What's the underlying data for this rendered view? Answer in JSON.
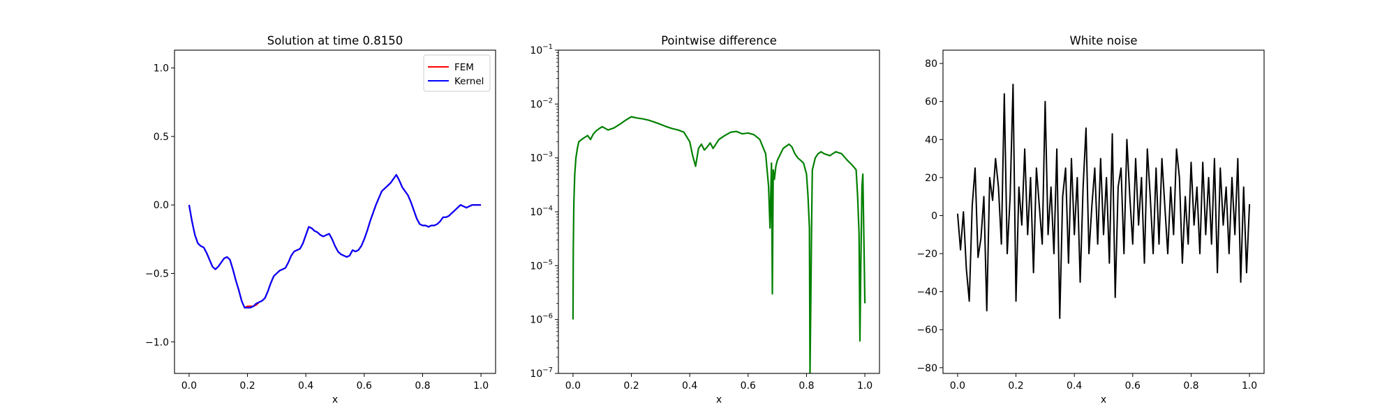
{
  "chart_data": [
    {
      "type": "line",
      "title": "Solution at time 0.8150",
      "xlabel": "x",
      "ylabel": "",
      "xlim": [
        -0.05,
        1.05
      ],
      "ylim": [
        -1.23,
        1.13
      ],
      "xticks": [
        0.0,
        0.2,
        0.4,
        0.6,
        0.8,
        1.0
      ],
      "xtick_labels": [
        "0.0",
        "0.2",
        "0.4",
        "0.6",
        "0.8",
        "1.0"
      ],
      "yticks": [
        -1.0,
        -0.5,
        0.0,
        0.5,
        1.0
      ],
      "ytick_labels": [
        "−1.0",
        "−0.5",
        "0.0",
        "0.5",
        "1.0"
      ],
      "legend": {
        "position": "top-right",
        "entries": [
          "FEM",
          "Kernel"
        ]
      },
      "series": [
        {
          "name": "FEM",
          "color": "#ff0000",
          "x": [
            0.0,
            0.01,
            0.02,
            0.03,
            0.04,
            0.05,
            0.06,
            0.07,
            0.08,
            0.09,
            0.1,
            0.11,
            0.12,
            0.13,
            0.14,
            0.15,
            0.16,
            0.17,
            0.18,
            0.19,
            0.2,
            0.21,
            0.22,
            0.23,
            0.24,
            0.25,
            0.26,
            0.27,
            0.28,
            0.29,
            0.3,
            0.31,
            0.32,
            0.33,
            0.34,
            0.35,
            0.36,
            0.37,
            0.38,
            0.39,
            0.4,
            0.41,
            0.42,
            0.43,
            0.44,
            0.45,
            0.46,
            0.47,
            0.48,
            0.49,
            0.5,
            0.51,
            0.52,
            0.53,
            0.54,
            0.55,
            0.56,
            0.57,
            0.58,
            0.59,
            0.6,
            0.61,
            0.62,
            0.63,
            0.64,
            0.65,
            0.66,
            0.67,
            0.68,
            0.69,
            0.7,
            0.71,
            0.72,
            0.73,
            0.74,
            0.75,
            0.76,
            0.77,
            0.78,
            0.79,
            0.8,
            0.81,
            0.82,
            0.83,
            0.84,
            0.85,
            0.86,
            0.87,
            0.88,
            0.89,
            0.9,
            0.91,
            0.92,
            0.93,
            0.94,
            0.95,
            0.96,
            0.97,
            0.98,
            0.99,
            1.0
          ],
          "y": [
            0.0,
            -0.12,
            -0.22,
            -0.28,
            -0.3,
            -0.31,
            -0.35,
            -0.4,
            -0.45,
            -0.47,
            -0.45,
            -0.42,
            -0.39,
            -0.38,
            -0.4,
            -0.47,
            -0.55,
            -0.62,
            -0.7,
            -0.75,
            -0.74,
            -0.74,
            -0.74,
            -0.73,
            -0.71,
            -0.7,
            -0.68,
            -0.63,
            -0.57,
            -0.52,
            -0.5,
            -0.48,
            -0.47,
            -0.46,
            -0.42,
            -0.37,
            -0.34,
            -0.33,
            -0.32,
            -0.28,
            -0.22,
            -0.16,
            -0.17,
            -0.19,
            -0.2,
            -0.22,
            -0.23,
            -0.22,
            -0.21,
            -0.25,
            -0.3,
            -0.34,
            -0.36,
            -0.37,
            -0.38,
            -0.37,
            -0.33,
            -0.34,
            -0.33,
            -0.3,
            -0.25,
            -0.19,
            -0.12,
            -0.06,
            0.0,
            0.05,
            0.1,
            0.12,
            0.14,
            0.16,
            0.19,
            0.22,
            0.18,
            0.13,
            0.1,
            0.07,
            0.02,
            -0.04,
            -0.1,
            -0.14,
            -0.15,
            -0.15,
            -0.16,
            -0.15,
            -0.15,
            -0.14,
            -0.12,
            -0.09,
            -0.09,
            -0.08,
            -0.06,
            -0.04,
            -0.02,
            0.0,
            -0.01,
            -0.02,
            -0.01,
            0.0,
            0.0,
            0.0,
            0.0
          ]
        },
        {
          "name": "Kernel",
          "color": "#0000ff",
          "x": [
            0.0,
            0.01,
            0.02,
            0.03,
            0.04,
            0.05,
            0.06,
            0.07,
            0.08,
            0.09,
            0.1,
            0.11,
            0.12,
            0.13,
            0.14,
            0.15,
            0.16,
            0.17,
            0.18,
            0.19,
            0.2,
            0.21,
            0.22,
            0.23,
            0.24,
            0.25,
            0.26,
            0.27,
            0.28,
            0.29,
            0.3,
            0.31,
            0.32,
            0.33,
            0.34,
            0.35,
            0.36,
            0.37,
            0.38,
            0.39,
            0.4,
            0.41,
            0.42,
            0.43,
            0.44,
            0.45,
            0.46,
            0.47,
            0.48,
            0.49,
            0.5,
            0.51,
            0.52,
            0.53,
            0.54,
            0.55,
            0.56,
            0.57,
            0.58,
            0.59,
            0.6,
            0.61,
            0.62,
            0.63,
            0.64,
            0.65,
            0.66,
            0.67,
            0.68,
            0.69,
            0.7,
            0.71,
            0.72,
            0.73,
            0.74,
            0.75,
            0.76,
            0.77,
            0.78,
            0.79,
            0.8,
            0.81,
            0.82,
            0.83,
            0.84,
            0.85,
            0.86,
            0.87,
            0.88,
            0.89,
            0.9,
            0.91,
            0.92,
            0.93,
            0.94,
            0.95,
            0.96,
            0.97,
            0.98,
            0.99,
            1.0
          ],
          "y": [
            0.0,
            -0.12,
            -0.22,
            -0.28,
            -0.3,
            -0.31,
            -0.35,
            -0.4,
            -0.45,
            -0.47,
            -0.45,
            -0.42,
            -0.39,
            -0.38,
            -0.4,
            -0.47,
            -0.55,
            -0.62,
            -0.7,
            -0.75,
            -0.75,
            -0.75,
            -0.74,
            -0.72,
            -0.71,
            -0.7,
            -0.68,
            -0.63,
            -0.57,
            -0.52,
            -0.5,
            -0.48,
            -0.47,
            -0.46,
            -0.42,
            -0.37,
            -0.34,
            -0.33,
            -0.32,
            -0.28,
            -0.22,
            -0.16,
            -0.17,
            -0.19,
            -0.2,
            -0.22,
            -0.23,
            -0.22,
            -0.21,
            -0.25,
            -0.3,
            -0.34,
            -0.36,
            -0.37,
            -0.38,
            -0.37,
            -0.33,
            -0.34,
            -0.33,
            -0.3,
            -0.25,
            -0.19,
            -0.12,
            -0.06,
            0.0,
            0.05,
            0.1,
            0.12,
            0.14,
            0.16,
            0.19,
            0.22,
            0.18,
            0.13,
            0.1,
            0.07,
            0.02,
            -0.04,
            -0.1,
            -0.14,
            -0.15,
            -0.15,
            -0.16,
            -0.15,
            -0.15,
            -0.14,
            -0.12,
            -0.09,
            -0.09,
            -0.08,
            -0.06,
            -0.04,
            -0.02,
            0.0,
            -0.01,
            -0.02,
            -0.01,
            0.0,
            0.0,
            0.0,
            0.0
          ]
        }
      ]
    },
    {
      "type": "line",
      "title": "Pointwise difference",
      "xlabel": "x",
      "ylabel": "",
      "yscale": "log",
      "xlim": [
        -0.05,
        1.05
      ],
      "ylim": [
        1e-07,
        0.1
      ],
      "xticks": [
        0.0,
        0.2,
        0.4,
        0.6,
        0.8,
        1.0
      ],
      "xtick_labels": [
        "0.0",
        "0.2",
        "0.4",
        "0.6",
        "0.8",
        "1.0"
      ],
      "yticks": [
        1e-07,
        1e-06,
        1e-05,
        0.0001,
        0.001,
        0.01,
        0.1
      ],
      "ytick_labels": [
        {
          "base": "10",
          "exp": "−7"
        },
        {
          "base": "10",
          "exp": "−6"
        },
        {
          "base": "10",
          "exp": "−5"
        },
        {
          "base": "10",
          "exp": "−4"
        },
        {
          "base": "10",
          "exp": "−3"
        },
        {
          "base": "10",
          "exp": "−2"
        },
        {
          "base": "10",
          "exp": "−1"
        }
      ],
      "series": [
        {
          "color": "#008000",
          "x": [
            0.0,
            0.001,
            0.003,
            0.006,
            0.01,
            0.015,
            0.02,
            0.03,
            0.04,
            0.05,
            0.06,
            0.07,
            0.08,
            0.09,
            0.1,
            0.12,
            0.14,
            0.16,
            0.18,
            0.2,
            0.22,
            0.24,
            0.26,
            0.28,
            0.3,
            0.32,
            0.34,
            0.36,
            0.38,
            0.4,
            0.41,
            0.42,
            0.43,
            0.44,
            0.45,
            0.46,
            0.47,
            0.48,
            0.5,
            0.52,
            0.54,
            0.56,
            0.58,
            0.6,
            0.62,
            0.64,
            0.66,
            0.67,
            0.675,
            0.68,
            0.683,
            0.686,
            0.69,
            0.695,
            0.7,
            0.72,
            0.74,
            0.75,
            0.76,
            0.77,
            0.78,
            0.79,
            0.8,
            0.805,
            0.81,
            0.812,
            0.815,
            0.818,
            0.82,
            0.83,
            0.84,
            0.85,
            0.86,
            0.88,
            0.9,
            0.92,
            0.94,
            0.95,
            0.96,
            0.97,
            0.975,
            0.98,
            0.983,
            0.986,
            0.99,
            0.993,
            0.996,
            1.0
          ],
          "y": [
            1e-06,
            2e-05,
            0.00015,
            0.0005,
            0.001,
            0.0015,
            0.002,
            0.0022,
            0.0024,
            0.0026,
            0.0022,
            0.0028,
            0.0032,
            0.0035,
            0.0038,
            0.0033,
            0.0036,
            0.0042,
            0.005,
            0.0058,
            0.0055,
            0.0053,
            0.005,
            0.0046,
            0.0042,
            0.0038,
            0.0035,
            0.0033,
            0.003,
            0.002,
            0.0011,
            0.0007,
            0.0015,
            0.0018,
            0.0014,
            0.0016,
            0.0019,
            0.0015,
            0.0022,
            0.0026,
            0.003,
            0.0031,
            0.0028,
            0.0029,
            0.0027,
            0.0022,
            0.0012,
            0.0003,
            5e-05,
            0.0008,
            3e-06,
            0.0006,
            0.0004,
            0.0007,
            0.0009,
            0.0015,
            0.0018,
            0.0016,
            0.0012,
            0.001,
            0.0009,
            0.0008,
            0.0005,
            0.0002,
            5e-05,
            1e-07,
            3e-06,
            0.0001,
            0.0006,
            0.001,
            0.0012,
            0.0013,
            0.0012,
            0.0011,
            0.0013,
            0.0012,
            0.0009,
            0.0008,
            0.0007,
            0.0006,
            0.0002,
            4e-05,
            4e-07,
            1e-05,
            0.0003,
            0.0005,
            5e-05,
            2e-06
          ]
        }
      ]
    },
    {
      "type": "line",
      "title": "White noise",
      "xlabel": "x",
      "ylabel": "",
      "xlim": [
        -0.05,
        1.05
      ],
      "ylim": [
        -83,
        87
      ],
      "xticks": [
        0.0,
        0.2,
        0.4,
        0.6,
        0.8,
        1.0
      ],
      "xtick_labels": [
        "0.0",
        "0.2",
        "0.4",
        "0.6",
        "0.8",
        "1.0"
      ],
      "yticks": [
        -80,
        -60,
        -40,
        -20,
        0,
        20,
        40,
        60,
        80
      ],
      "ytick_labels": [
        "−80",
        "−60",
        "−40",
        "−20",
        "0",
        "20",
        "40",
        "60",
        "80"
      ],
      "series": [
        {
          "color": "#000000",
          "x": [
            0.0,
            0.01,
            0.02,
            0.03,
            0.04,
            0.05,
            0.06,
            0.07,
            0.08,
            0.09,
            0.1,
            0.11,
            0.12,
            0.13,
            0.14,
            0.15,
            0.16,
            0.17,
            0.18,
            0.19,
            0.2,
            0.21,
            0.22,
            0.23,
            0.24,
            0.25,
            0.26,
            0.27,
            0.28,
            0.29,
            0.3,
            0.31,
            0.32,
            0.33,
            0.34,
            0.35,
            0.36,
            0.37,
            0.38,
            0.39,
            0.4,
            0.41,
            0.42,
            0.43,
            0.44,
            0.45,
            0.46,
            0.47,
            0.48,
            0.49,
            0.5,
            0.51,
            0.52,
            0.53,
            0.54,
            0.55,
            0.56,
            0.57,
            0.58,
            0.59,
            0.6,
            0.61,
            0.62,
            0.63,
            0.64,
            0.65,
            0.66,
            0.67,
            0.68,
            0.69,
            0.7,
            0.71,
            0.72,
            0.73,
            0.74,
            0.75,
            0.76,
            0.77,
            0.78,
            0.79,
            0.8,
            0.81,
            0.82,
            0.83,
            0.84,
            0.85,
            0.86,
            0.87,
            0.88,
            0.89,
            0.9,
            0.91,
            0.92,
            0.93,
            0.94,
            0.95,
            0.96,
            0.97,
            0.98,
            0.99,
            1.0
          ],
          "y": [
            1,
            -18,
            2,
            -28,
            -45,
            5,
            25,
            -22,
            -12,
            10,
            -50,
            20,
            8,
            30,
            15,
            -15,
            64,
            -20,
            10,
            69,
            -45,
            15,
            -5,
            35,
            -10,
            20,
            -30,
            25,
            5,
            -15,
            60,
            -10,
            15,
            -20,
            35,
            -54,
            10,
            25,
            -25,
            30,
            -10,
            20,
            -35,
            15,
            46,
            -20,
            5,
            25,
            -15,
            30,
            -10,
            20,
            -25,
            43,
            -43,
            15,
            25,
            -20,
            40,
            10,
            -15,
            30,
            -5,
            20,
            -25,
            35,
            10,
            -20,
            25,
            -15,
            30,
            5,
            -20,
            15,
            -10,
            35,
            20,
            -25,
            10,
            -15,
            28,
            -5,
            15,
            -20,
            28,
            -10,
            20,
            -15,
            30,
            -30,
            25,
            -5,
            15,
            -20,
            20,
            -10,
            30,
            -35,
            15,
            -30,
            6
          ]
        }
      ]
    }
  ]
}
